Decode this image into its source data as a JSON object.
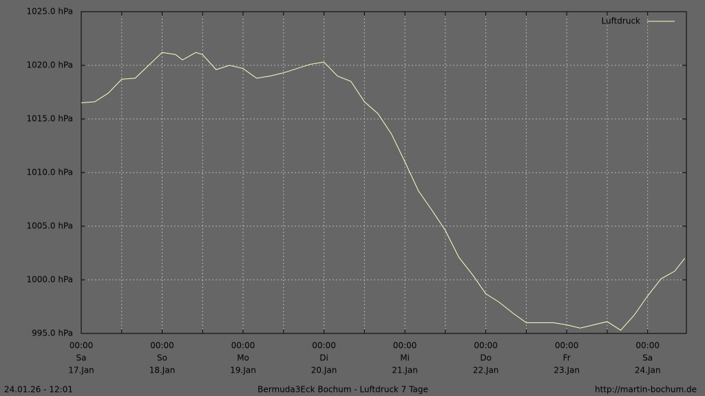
{
  "chart_data": {
    "type": "line",
    "title": "Bermuda3Eck Bochum - Luftdruck 7 Tage",
    "timestamp": "24.01.26 - 12:01",
    "source": "http://martin-bochum.de",
    "x": [
      0,
      4,
      8,
      12,
      16,
      20,
      24,
      28,
      30,
      34,
      36,
      40,
      44,
      48,
      52,
      56,
      60,
      64,
      68,
      72,
      76,
      80,
      84,
      88,
      92,
      96,
      100,
      104,
      108,
      112,
      116,
      120,
      124,
      128,
      132,
      136,
      140,
      144,
      148,
      152,
      156,
      160,
      164,
      168,
      172,
      176,
      179
    ],
    "series": [
      {
        "name": "Luftdruck",
        "color": "#ffffcc",
        "values": [
          1016.5,
          1016.6,
          1017.4,
          1018.7,
          1018.8,
          1020.0,
          1021.2,
          1021.0,
          1020.5,
          1021.2,
          1021.0,
          1019.6,
          1020.0,
          1019.7,
          1018.8,
          1019.0,
          1019.3,
          1019.7,
          1020.1,
          1020.3,
          1019.0,
          1018.5,
          1016.6,
          1015.5,
          1013.6,
          1011.0,
          1008.3,
          1006.5,
          1004.6,
          1002.1,
          1000.5,
          998.7,
          997.9,
          996.9,
          996.0,
          996.0,
          996.0,
          995.8,
          995.5,
          995.8,
          996.1,
          995.3,
          996.7,
          998.5,
          1000.1,
          1000.8,
          1002.0
        ]
      }
    ],
    "xlim": [
      0,
      179.5
    ],
    "xticks": [
      {
        "value": 0,
        "label": [
          "00:00",
          "Sa",
          "17.Jan"
        ]
      },
      {
        "value": 12,
        "label": null
      },
      {
        "value": 24,
        "label": [
          "00:00",
          "So",
          "18.Jan"
        ]
      },
      {
        "value": 36,
        "label": null
      },
      {
        "value": 48,
        "label": [
          "00:00",
          "Mo",
          "19.Jan"
        ]
      },
      {
        "value": 60,
        "label": null
      },
      {
        "value": 72,
        "label": [
          "00:00",
          "Di",
          "20.Jan"
        ]
      },
      {
        "value": 84,
        "label": null
      },
      {
        "value": 96,
        "label": [
          "00:00",
          "Mi",
          "21.Jan"
        ]
      },
      {
        "value": 108,
        "label": null
      },
      {
        "value": 120,
        "label": [
          "00:00",
          "Do",
          "22.Jan"
        ]
      },
      {
        "value": 132,
        "label": null
      },
      {
        "value": 144,
        "label": [
          "00:00",
          "Fr",
          "23.Jan"
        ]
      },
      {
        "value": 156,
        "label": null
      },
      {
        "value": 168,
        "label": [
          "00:00",
          "Sa",
          "24.Jan"
        ]
      }
    ],
    "ylim": [
      995,
      1025
    ],
    "yticks": [
      {
        "value": 995,
        "label": "995.0 hPa"
      },
      {
        "value": 1000,
        "label": "1000.0 hPa"
      },
      {
        "value": 1005,
        "label": "1005.0 hPa"
      },
      {
        "value": 1010,
        "label": "1010.0 hPa"
      },
      {
        "value": 1015,
        "label": "1015.0 hPa"
      },
      {
        "value": 1020,
        "label": "1020.0 hPa"
      },
      {
        "value": 1025,
        "label": "1025.0 hPa"
      }
    ],
    "grid": true,
    "legend": "upper right"
  }
}
